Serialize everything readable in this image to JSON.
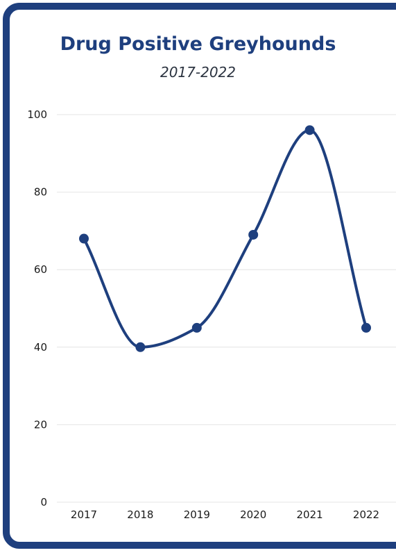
{
  "chart_data": {
    "type": "line",
    "title": "Drug Positive Greyhounds",
    "subtitle": "2017-2022",
    "xlabel": "",
    "ylabel": "",
    "categories": [
      "2017",
      "2018",
      "2019",
      "2020",
      "2021",
      "2022"
    ],
    "series": [
      {
        "values": [
          68,
          40,
          45,
          69,
          96,
          45
        ]
      }
    ],
    "ylim": [
      0,
      100
    ],
    "yticks": [
      0,
      20,
      40,
      60,
      80,
      100
    ],
    "grid": true,
    "legend": "none",
    "smooth": true,
    "colors": {
      "line": "#1e3f7e",
      "marker": "#1e3f7e",
      "grid": "#e4e4e4",
      "border": "#1e3f7e",
      "title": "#1e3f7e"
    }
  }
}
